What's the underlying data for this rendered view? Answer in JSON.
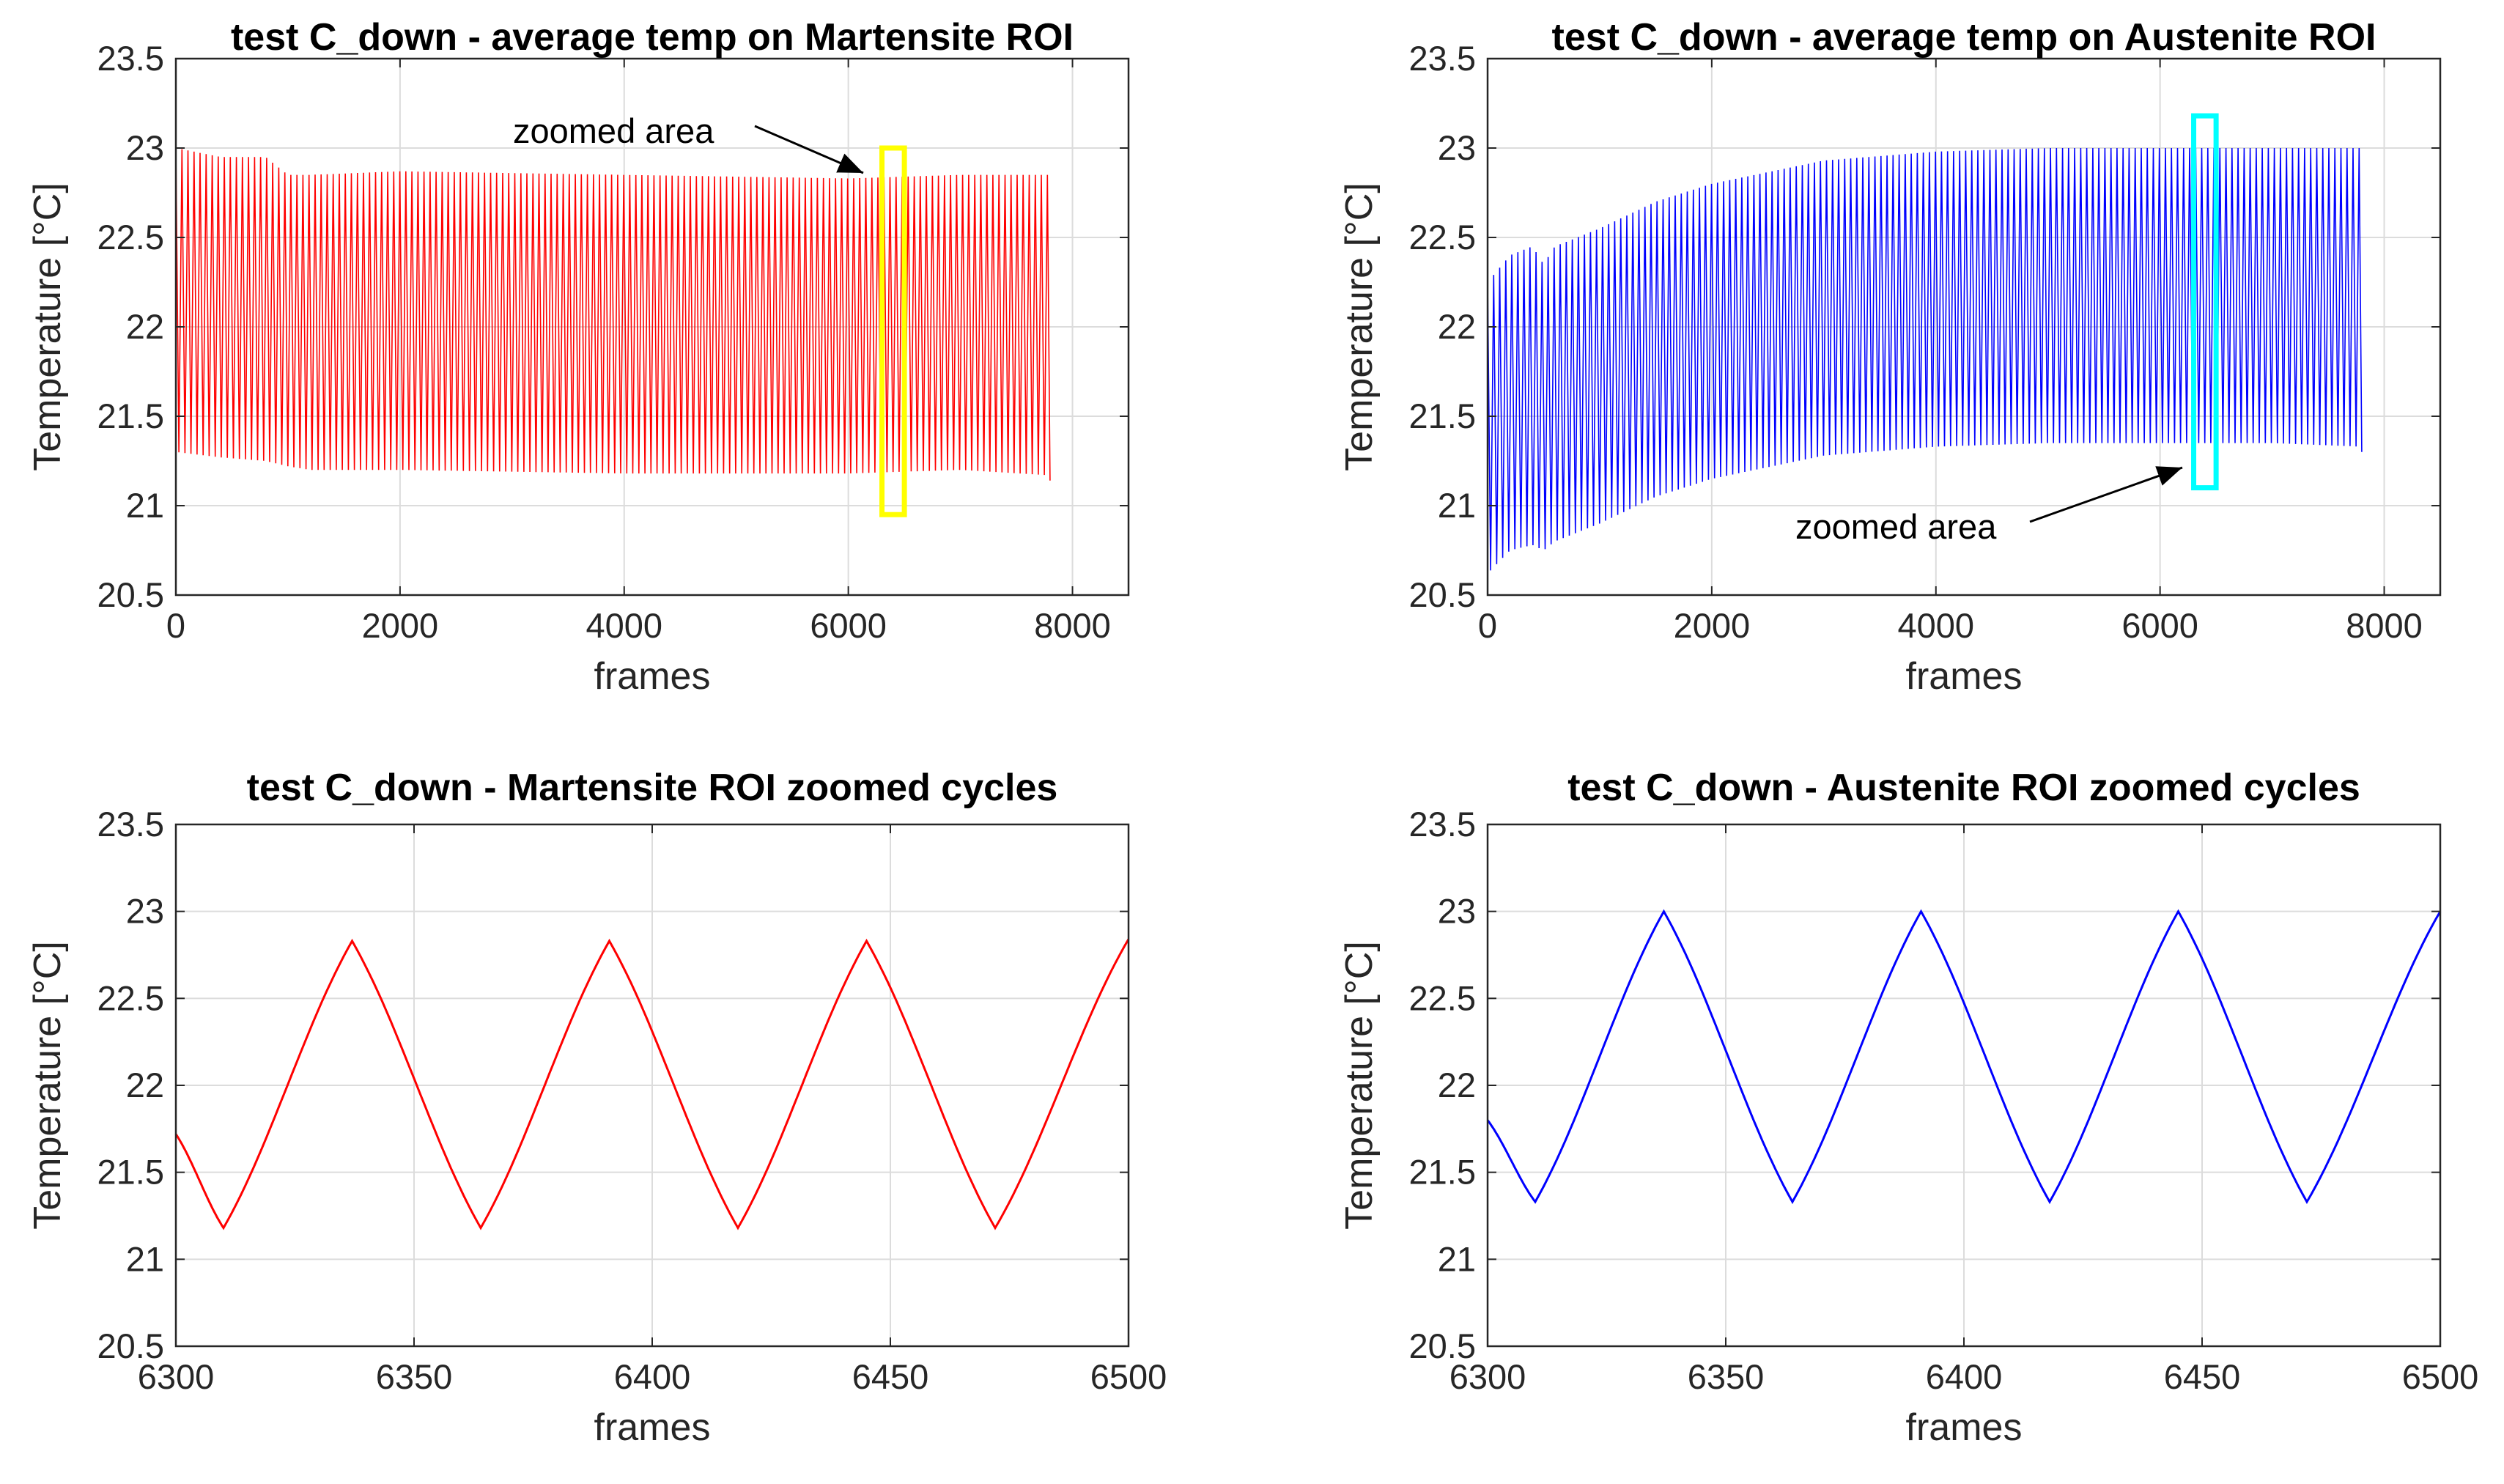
{
  "chart_data": [
    {
      "type": "line",
      "title": "test C_down - average temp on Martensite ROI",
      "xlabel": "frames",
      "ylabel": "Temperature [°C]",
      "xlim": [
        0,
        8500
      ],
      "ylim": [
        20.5,
        23.5
      ],
      "xticks": [
        "0",
        "2000",
        "4000",
        "6000",
        "8000"
      ],
      "yticks": [
        "20.5",
        "21",
        "21.5",
        "22",
        "22.5",
        "23",
        "23.5"
      ],
      "grid": true,
      "series": [
        {
          "name": "Martensite ROI",
          "color": "#ff0000",
          "x_start": 0,
          "x_end": 7800,
          "upper_envelope_x": [
            0,
            400,
            800,
            1000,
            1200,
            2000,
            3000,
            4000,
            5000,
            6000,
            7000,
            7800
          ],
          "upper_envelope_y": [
            23.0,
            22.95,
            22.95,
            22.85,
            22.85,
            22.87,
            22.86,
            22.85,
            22.84,
            22.83,
            22.85,
            22.85
          ],
          "lower_envelope_x": [
            0,
            400,
            800,
            1000,
            1200,
            2000,
            3000,
            4000,
            5000,
            6000,
            7000,
            7800
          ],
          "lower_envelope_y": [
            21.3,
            21.27,
            21.25,
            21.22,
            21.2,
            21.2,
            21.19,
            21.18,
            21.18,
            21.18,
            21.2,
            21.17
          ]
        }
      ],
      "annotations": [
        {
          "text": "zoomed area",
          "highlight_x": [
            6300,
            6500
          ],
          "highlight_y": [
            20.95,
            23.0
          ],
          "highlight_color": "#ffff00"
        }
      ]
    },
    {
      "type": "line",
      "title": "test C_down - average temp on Austenite ROI",
      "xlabel": "frames",
      "ylabel": "Temperature [°C]",
      "xlim": [
        0,
        8500
      ],
      "ylim": [
        20.5,
        23.5
      ],
      "xticks": [
        "0",
        "2000",
        "4000",
        "6000",
        "8000"
      ],
      "yticks": [
        "20.5",
        "21",
        "21.5",
        "22",
        "22.5",
        "23",
        "23.5"
      ],
      "grid": true,
      "series": [
        {
          "name": "Austenite ROI",
          "color": "#0000ff",
          "x_start": 0,
          "x_end": 7800,
          "upper_envelope_x": [
            0,
            200,
            400,
            500,
            600,
            1000,
            1500,
            2000,
            3000,
            4000,
            5000,
            6000,
            7000,
            7800
          ],
          "upper_envelope_y": [
            22.25,
            22.4,
            22.45,
            22.35,
            22.45,
            22.55,
            22.7,
            22.8,
            22.93,
            22.98,
            23.0,
            23.0,
            23.0,
            23.0
          ],
          "lower_envelope_x": [
            0,
            200,
            400,
            500,
            600,
            1000,
            1500,
            2000,
            3000,
            4000,
            5000,
            6000,
            7000,
            7800
          ],
          "lower_envelope_y": [
            20.62,
            20.75,
            20.78,
            20.75,
            20.8,
            20.9,
            21.05,
            21.15,
            21.28,
            21.33,
            21.35,
            21.35,
            21.35,
            21.33
          ]
        }
      ],
      "annotations": [
        {
          "text": "zoomed area",
          "highlight_x": [
            6300,
            6500
          ],
          "highlight_y": [
            21.1,
            23.18
          ],
          "highlight_color": "#00ffff"
        }
      ]
    },
    {
      "type": "line",
      "title": "test C_down - Martensite ROI zoomed cycles",
      "xlabel": "frames",
      "ylabel": "Temperature [°C]",
      "xlim": [
        6300,
        6500
      ],
      "ylim": [
        20.5,
        23.5
      ],
      "xticks": [
        "6300",
        "6350",
        "6400",
        "6450",
        "6500"
      ],
      "yticks": [
        "20.5",
        "21",
        "21.5",
        "22",
        "22.5",
        "23",
        "23.5"
      ],
      "grid": true,
      "series": [
        {
          "name": "Martensite ROI zoomed",
          "color": "#ff0000",
          "x": [
            6300,
            6310,
            6337,
            6364,
            6391,
            6418,
            6445,
            6472,
            6500
          ],
          "y": [
            21.72,
            21.18,
            22.83,
            21.18,
            22.83,
            21.18,
            22.83,
            21.18,
            22.84
          ]
        }
      ]
    },
    {
      "type": "line",
      "title": "test C_down - Austenite ROI zoomed cycles",
      "xlabel": "frames",
      "ylabel": "Temperature [°C]",
      "xlim": [
        6300,
        6500
      ],
      "ylim": [
        20.5,
        23.5
      ],
      "xticks": [
        "6300",
        "6350",
        "6400",
        "6450",
        "6500"
      ],
      "yticks": [
        "20.5",
        "21",
        "21.5",
        "22",
        "22.5",
        "23",
        "23.5"
      ],
      "grid": true,
      "series": [
        {
          "name": "Austenite ROI zoomed",
          "color": "#0000ff",
          "x": [
            6300,
            6310,
            6337,
            6364,
            6391,
            6418,
            6445,
            6472,
            6500
          ],
          "y": [
            21.8,
            21.33,
            23.0,
            21.33,
            23.0,
            21.33,
            23.0,
            21.33,
            23.0
          ]
        }
      ]
    }
  ]
}
